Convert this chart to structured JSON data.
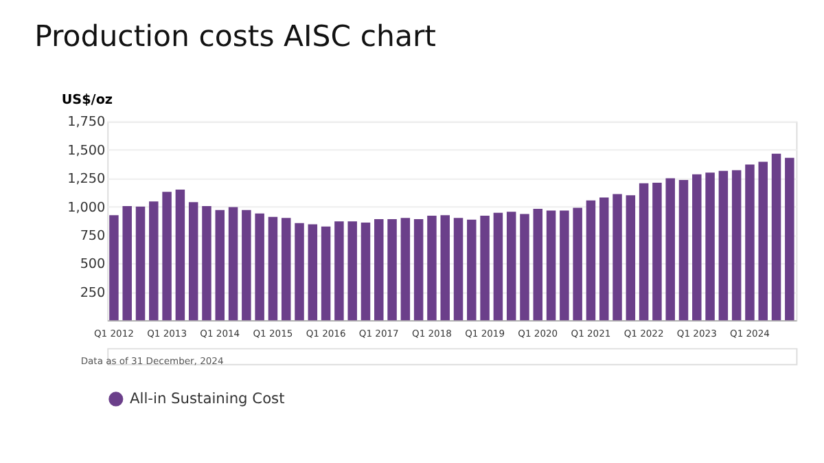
{
  "chart_data": {
    "type": "bar",
    "title": "Production costs AISC chart",
    "ylabel": "US$/oz",
    "categories": [
      "Q1 2012",
      null,
      null,
      null,
      "Q1 2013",
      null,
      null,
      null,
      "Q1 2014",
      null,
      null,
      null,
      "Q1 2015",
      null,
      null,
      null,
      "Q1 2016",
      null,
      null,
      null,
      "Q1 2017",
      null,
      null,
      null,
      "Q1 2018",
      null,
      null,
      null,
      "Q1 2019",
      null,
      null,
      null,
      "Q1 2020",
      null,
      null,
      null,
      "Q1 2021",
      null,
      null,
      null,
      "Q1 2022",
      null,
      null,
      null,
      "Q1 2023",
      null,
      null,
      null,
      "Q1 2024",
      null,
      null,
      null
    ],
    "series": [
      {
        "name": "All-in Sustaining Cost",
        "color": "#6b3f8a",
        "values": [
          925,
          1005,
          1000,
          1045,
          1130,
          1150,
          1040,
          1005,
          970,
          995,
          970,
          940,
          910,
          900,
          855,
          845,
          825,
          870,
          870,
          860,
          890,
          890,
          900,
          890,
          920,
          925,
          900,
          885,
          920,
          945,
          955,
          935,
          980,
          965,
          965,
          990,
          1055,
          1080,
          1110,
          1100,
          1205,
          1210,
          1250,
          1235,
          1285,
          1300,
          1315,
          1320,
          1370,
          1395,
          1465,
          1430
        ]
      }
    ],
    "ylim": [
      0,
      1750
    ],
    "yticks": [
      {
        "value": 0,
        "label": null
      },
      250,
      500,
      750,
      {
        "value": 1000,
        "label": "1,000"
      },
      {
        "value": 1250,
        "label": "1,250"
      },
      {
        "value": 1500,
        "label": "1,500"
      },
      {
        "value": 1750,
        "label": "1,750"
      }
    ],
    "grid": "y",
    "legend": "bottom",
    "annotations": [
      "Data as of 31 December, 2024"
    ]
  }
}
